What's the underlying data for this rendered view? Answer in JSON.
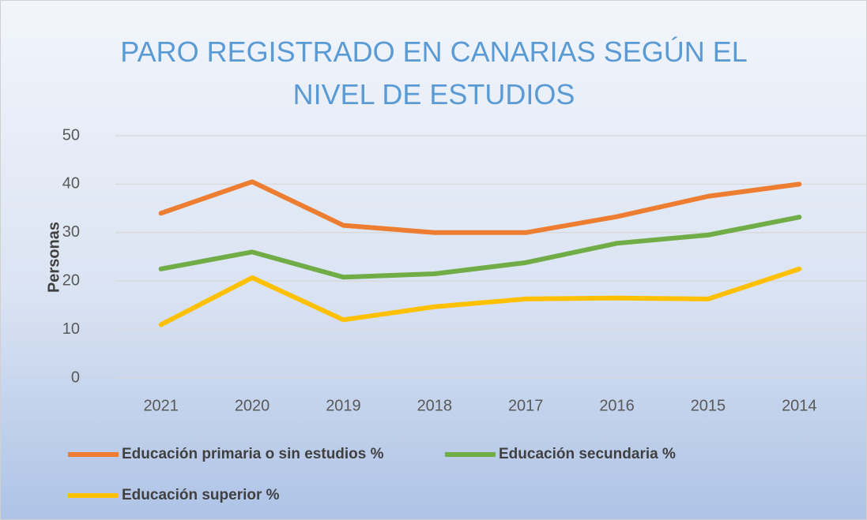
{
  "chart_data": {
    "type": "line",
    "title": "PARO REGISTRADO EN CANARIAS SEGÚN EL NIVEL DE ESTUDIOS",
    "y_label": "Personas",
    "categories": [
      "2021",
      "2020",
      "2019",
      "2018",
      "2017",
      "2016",
      "2015",
      "2014"
    ],
    "series": [
      {
        "name": "Educación primaria o sin estudios %",
        "color": "#ed7d31",
        "values": [
          34,
          40.5,
          31.5,
          30,
          30,
          33.3,
          37.5,
          40
        ]
      },
      {
        "name": "Educación secundaria %",
        "color": "#70ad47",
        "values": [
          22.5,
          26,
          20.8,
          21.5,
          23.8,
          27.8,
          29.5,
          33.2
        ]
      },
      {
        "name": "Educación superior %",
        "color": "#ffc000",
        "values": [
          11,
          20.7,
          12,
          14.7,
          16.3,
          16.5,
          16.3,
          22.5
        ]
      }
    ],
    "ylim": [
      0,
      50
    ],
    "yticks": [
      0,
      10,
      20,
      30,
      40,
      50
    ],
    "grid": true,
    "legend": "bottom"
  }
}
